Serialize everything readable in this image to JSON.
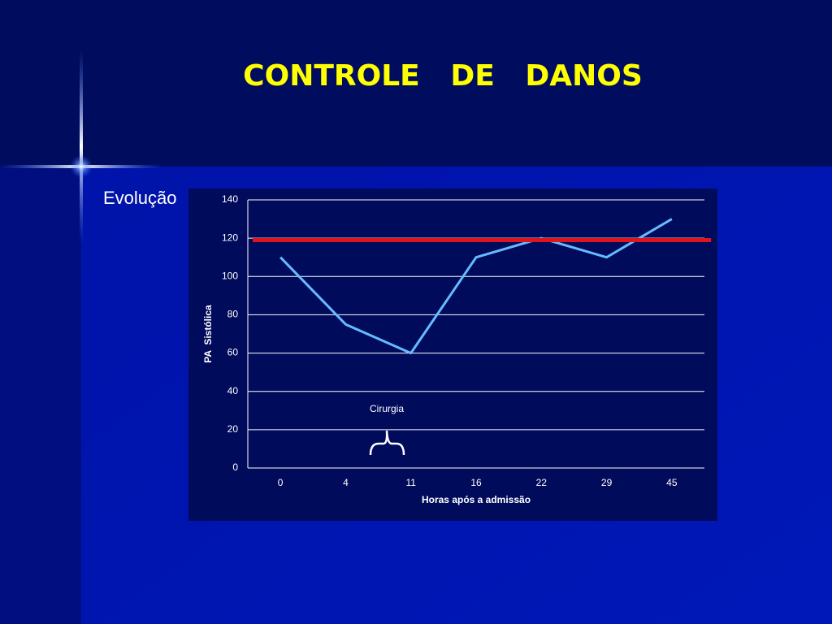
{
  "title": "CONTROLE   DE   DANOS",
  "subtitle": "Evolução",
  "chart_data": {
    "type": "line",
    "categories": [
      "0",
      "4",
      "11",
      "16",
      "22",
      "29",
      "45"
    ],
    "series": [
      {
        "color": "#66bbff",
        "values": [
          110,
          75,
          60,
          110,
          120,
          110,
          130
        ]
      }
    ],
    "reference_line": {
      "value": 119,
      "color": "#e0141e"
    },
    "ylim": [
      0,
      140
    ],
    "yticks": [
      0,
      20,
      40,
      60,
      80,
      100,
      120,
      140
    ],
    "grid": true,
    "ylabel": "PA  Sistólica",
    "xlabel": "Horas após a admissão",
    "annotation": "Cirurgia"
  }
}
